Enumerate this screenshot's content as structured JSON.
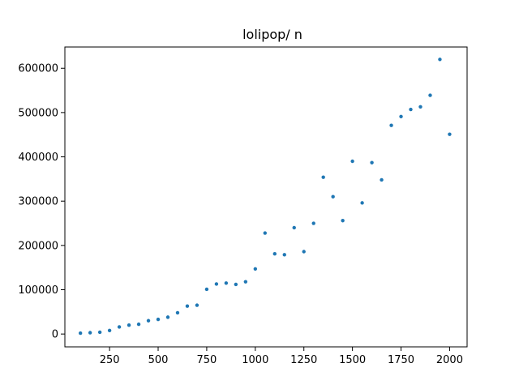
{
  "chart_data": {
    "type": "scatter",
    "title": "lolipop/ n",
    "xlabel": "",
    "ylabel": "",
    "xlim": [
      20,
      2090
    ],
    "ylim": [
      -29000,
      648000
    ],
    "x_ticks": [
      250,
      500,
      750,
      1000,
      1250,
      1500,
      1750,
      2000
    ],
    "x_tick_labels": [
      "250",
      "500",
      "750",
      "1000",
      "1250",
      "1500",
      "1750",
      "2000"
    ],
    "y_ticks": [
      0,
      100000,
      200000,
      300000,
      400000,
      500000,
      600000
    ],
    "y_tick_labels": [
      "0",
      "100000",
      "200000",
      "300000",
      "400000",
      "500000",
      "600000"
    ],
    "grid": false,
    "legend": "none",
    "marker_color": "#1f77b4",
    "series": [
      {
        "x": [
          100,
          150,
          200,
          250,
          300,
          350,
          400,
          450,
          500,
          550,
          600,
          650,
          700,
          750,
          800,
          850,
          900,
          950,
          1000,
          1050,
          1100,
          1150,
          1200,
          1250,
          1300,
          1350,
          1400,
          1450,
          1500,
          1550,
          1600,
          1650,
          1700,
          1750,
          1800,
          1850,
          1900,
          1950,
          2000
        ],
        "y": [
          2000,
          3000,
          4000,
          8000,
          16000,
          20000,
          22000,
          30000,
          33000,
          38000,
          48000,
          63000,
          65000,
          101000,
          113000,
          115000,
          112000,
          118000,
          147000,
          228000,
          181000,
          179000,
          240000,
          186000,
          250000,
          354000,
          310000,
          256000,
          390000,
          296000,
          387000,
          348000,
          471000,
          491000,
          507000,
          513000,
          539000,
          620000,
          451000
        ]
      }
    ]
  }
}
